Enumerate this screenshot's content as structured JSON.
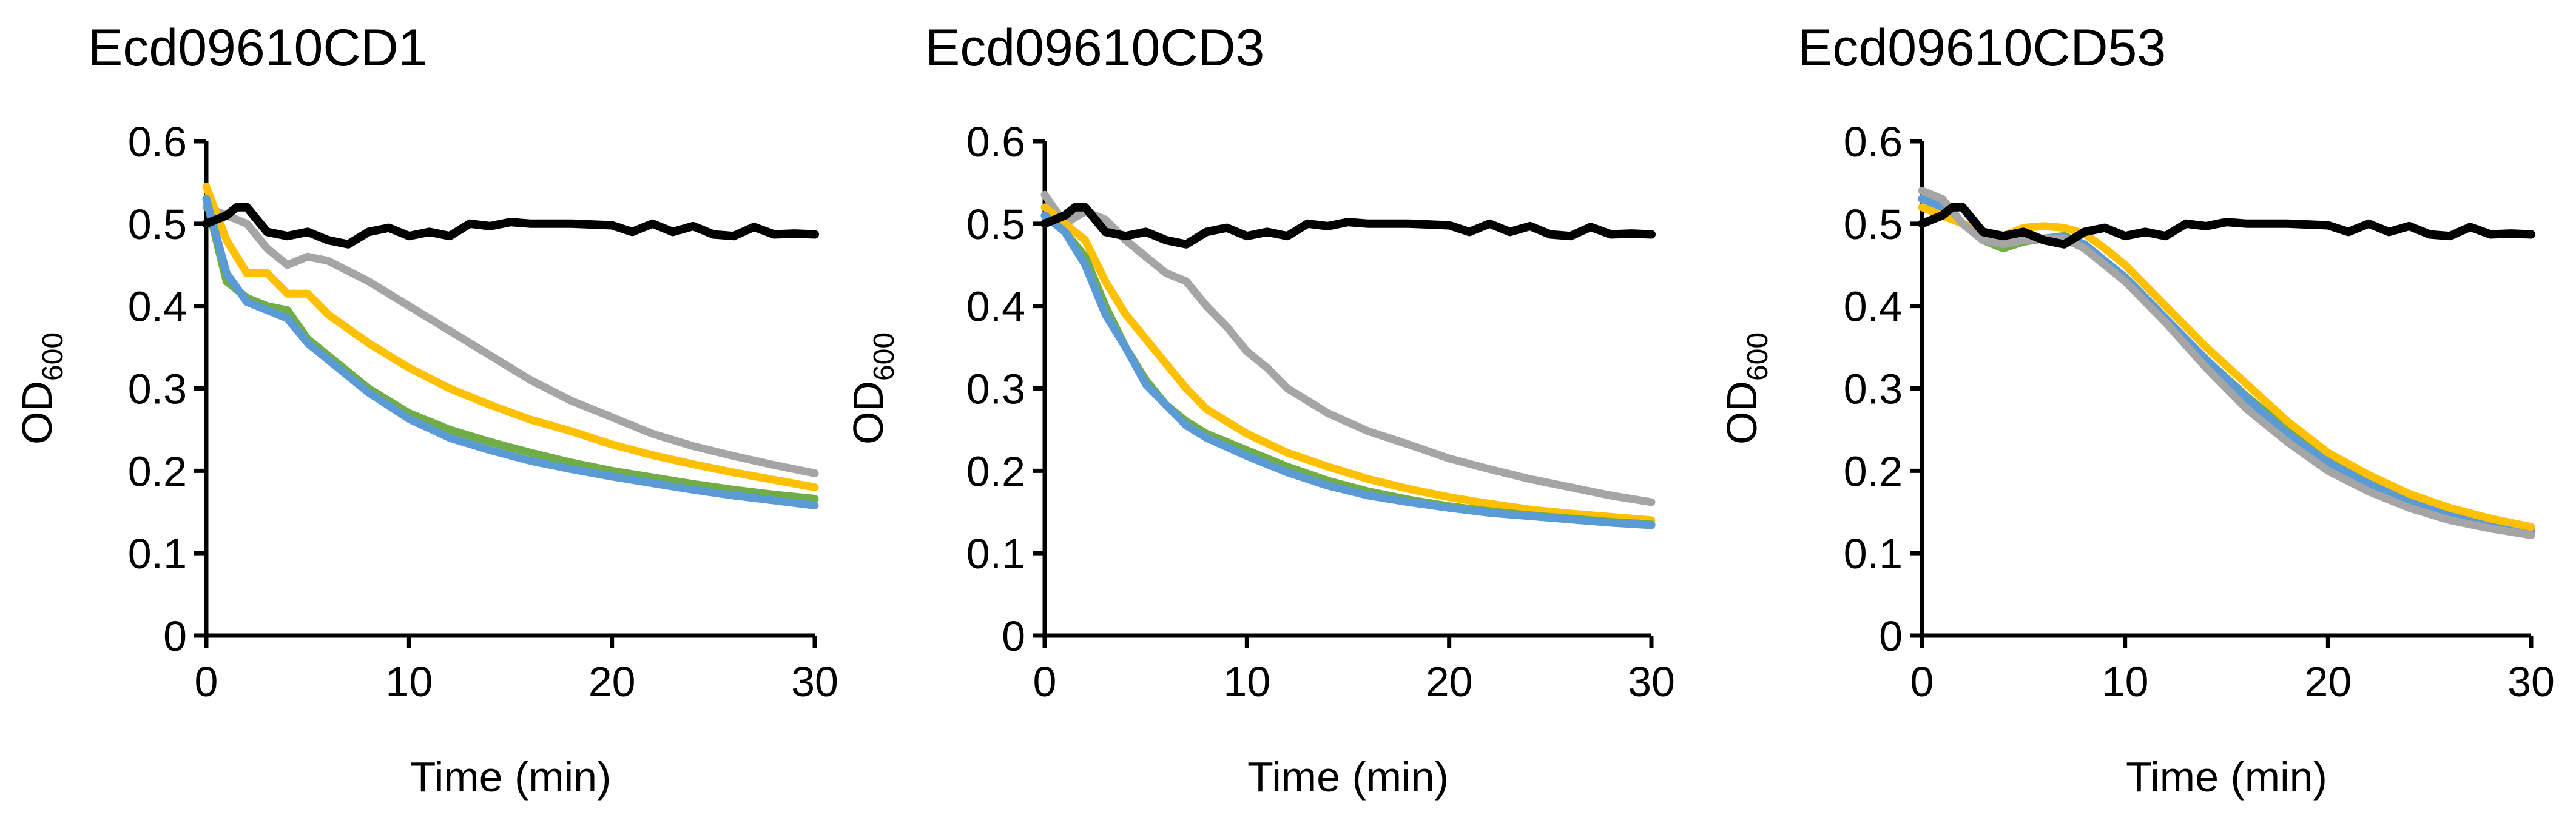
{
  "chart_data": [
    {
      "type": "line",
      "title": "Ecd09610CD1",
      "xlabel": "Time (min)",
      "ylabel": "OD",
      "ylabel_sub": "600",
      "xlim": [
        0,
        30
      ],
      "ylim": [
        0,
        0.6
      ],
      "xticks": [
        0,
        10,
        20,
        30
      ],
      "yticks": [
        0,
        0.1,
        0.2,
        0.3,
        0.4,
        0.5,
        0.6
      ],
      "series": [
        {
          "name": "gray",
          "color": "#a5a5a5",
          "x": [
            0,
            1,
            2,
            3,
            4,
            5,
            6,
            8,
            10,
            12,
            14,
            16,
            18,
            20,
            22,
            24,
            26,
            28,
            30
          ],
          "y": [
            0.52,
            0.51,
            0.5,
            0.47,
            0.45,
            0.46,
            0.455,
            0.43,
            0.4,
            0.37,
            0.34,
            0.31,
            0.285,
            0.265,
            0.245,
            0.23,
            0.218,
            0.207,
            0.197
          ]
        },
        {
          "name": "yellow",
          "color": "#ffc000",
          "x": [
            0,
            1,
            2,
            3,
            4,
            5,
            6,
            8,
            10,
            12,
            14,
            16,
            18,
            20,
            22,
            24,
            26,
            28,
            30
          ],
          "y": [
            0.545,
            0.48,
            0.44,
            0.44,
            0.415,
            0.415,
            0.39,
            0.355,
            0.325,
            0.3,
            0.28,
            0.262,
            0.248,
            0.232,
            0.219,
            0.208,
            0.198,
            0.189,
            0.18
          ]
        },
        {
          "name": "green",
          "color": "#70ad47",
          "x": [
            0,
            1,
            2,
            3,
            4,
            5,
            6,
            8,
            10,
            12,
            14,
            16,
            18,
            20,
            22,
            24,
            26,
            28,
            30
          ],
          "y": [
            0.53,
            0.43,
            0.41,
            0.4,
            0.395,
            0.36,
            0.34,
            0.3,
            0.27,
            0.25,
            0.235,
            0.222,
            0.21,
            0.2,
            0.192,
            0.184,
            0.177,
            0.171,
            0.166
          ]
        },
        {
          "name": "blue",
          "color": "#5b9bd5",
          "x": [
            0,
            1,
            2,
            3,
            4,
            5,
            6,
            8,
            10,
            12,
            14,
            16,
            18,
            20,
            22,
            24,
            26,
            28,
            30
          ],
          "y": [
            0.53,
            0.44,
            0.405,
            0.395,
            0.385,
            0.355,
            0.335,
            0.295,
            0.263,
            0.24,
            0.225,
            0.212,
            0.202,
            0.193,
            0.185,
            0.177,
            0.17,
            0.164,
            0.158
          ]
        },
        {
          "name": "black",
          "color": "#000000",
          "x": [
            0,
            1,
            1.5,
            2,
            3,
            4,
            5,
            6,
            7,
            8,
            9,
            10,
            11,
            12,
            13,
            14,
            15,
            16,
            18,
            20,
            21,
            22,
            23,
            24,
            25,
            26,
            27,
            28,
            29,
            30
          ],
          "y": [
            0.5,
            0.51,
            0.52,
            0.52,
            0.49,
            0.485,
            0.49,
            0.48,
            0.475,
            0.49,
            0.495,
            0.485,
            0.49,
            0.485,
            0.5,
            0.497,
            0.502,
            0.5,
            0.5,
            0.498,
            0.49,
            0.5,
            0.49,
            0.497,
            0.487,
            0.485,
            0.496,
            0.487,
            0.488,
            0.487
          ]
        }
      ]
    },
    {
      "type": "line",
      "title": "Ecd09610CD3",
      "xlabel": "Time (min)",
      "ylabel": "OD",
      "ylabel_sub": "600",
      "xlim": [
        0,
        30
      ],
      "ylim": [
        0,
        0.6
      ],
      "xticks": [
        0,
        10,
        20,
        30
      ],
      "yticks": [
        0,
        0.1,
        0.2,
        0.3,
        0.4,
        0.5,
        0.6
      ],
      "series": [
        {
          "name": "gray",
          "color": "#a5a5a5",
          "x": [
            0,
            1,
            2,
            3,
            4,
            5,
            6,
            7,
            8,
            9,
            10,
            11,
            12,
            14,
            16,
            18,
            20,
            22,
            24,
            26,
            28,
            30
          ],
          "y": [
            0.535,
            0.5,
            0.515,
            0.505,
            0.48,
            0.46,
            0.44,
            0.43,
            0.4,
            0.375,
            0.345,
            0.325,
            0.3,
            0.27,
            0.248,
            0.232,
            0.215,
            0.202,
            0.19,
            0.18,
            0.17,
            0.162
          ]
        },
        {
          "name": "yellow",
          "color": "#ffc000",
          "x": [
            0,
            1,
            2,
            3,
            4,
            5,
            6,
            7,
            8,
            10,
            12,
            14,
            16,
            18,
            20,
            22,
            24,
            26,
            28,
            30
          ],
          "y": [
            0.52,
            0.5,
            0.48,
            0.43,
            0.39,
            0.36,
            0.33,
            0.3,
            0.275,
            0.245,
            0.222,
            0.205,
            0.19,
            0.178,
            0.168,
            0.16,
            0.153,
            0.148,
            0.144,
            0.14
          ]
        },
        {
          "name": "green",
          "color": "#70ad47",
          "x": [
            0,
            1,
            2,
            3,
            4,
            5,
            6,
            7,
            8,
            10,
            12,
            14,
            16,
            18,
            20,
            22,
            24,
            26,
            28,
            30
          ],
          "y": [
            0.51,
            0.49,
            0.46,
            0.4,
            0.35,
            0.31,
            0.28,
            0.26,
            0.245,
            0.225,
            0.205,
            0.188,
            0.175,
            0.165,
            0.157,
            0.151,
            0.146,
            0.142,
            0.138,
            0.135
          ]
        },
        {
          "name": "blue",
          "color": "#5b9bd5",
          "x": [
            0,
            1,
            2,
            3,
            4,
            5,
            6,
            7,
            8,
            10,
            12,
            14,
            16,
            18,
            20,
            22,
            24,
            26,
            28,
            30
          ],
          "y": [
            0.51,
            0.49,
            0.45,
            0.39,
            0.35,
            0.305,
            0.28,
            0.255,
            0.24,
            0.218,
            0.198,
            0.182,
            0.17,
            0.162,
            0.155,
            0.149,
            0.145,
            0.141,
            0.137,
            0.134
          ]
        },
        {
          "name": "black",
          "color": "#000000",
          "x": [
            0,
            1,
            1.5,
            2,
            3,
            4,
            5,
            6,
            7,
            8,
            9,
            10,
            11,
            12,
            13,
            14,
            15,
            16,
            18,
            20,
            21,
            22,
            23,
            24,
            25,
            26,
            27,
            28,
            29,
            30
          ],
          "y": [
            0.5,
            0.51,
            0.52,
            0.52,
            0.49,
            0.485,
            0.49,
            0.48,
            0.475,
            0.49,
            0.495,
            0.485,
            0.49,
            0.485,
            0.5,
            0.497,
            0.502,
            0.5,
            0.5,
            0.498,
            0.49,
            0.5,
            0.49,
            0.497,
            0.487,
            0.485,
            0.496,
            0.487,
            0.488,
            0.487
          ]
        }
      ]
    },
    {
      "type": "line",
      "title": "Ecd09610CD53",
      "xlabel": "Time (min)",
      "ylabel": "OD",
      "ylabel_sub": "600",
      "xlim": [
        0,
        30
      ],
      "ylim": [
        0,
        0.6
      ],
      "xticks": [
        0,
        10,
        20,
        30
      ],
      "yticks": [
        0,
        0.1,
        0.2,
        0.3,
        0.4,
        0.5,
        0.6
      ],
      "series": [
        {
          "name": "green",
          "color": "#70ad47",
          "x": [
            0,
            1,
            2,
            3,
            4,
            5,
            6,
            7,
            8,
            9,
            10,
            12,
            14,
            16,
            18,
            20,
            22,
            24,
            26,
            28,
            30
          ],
          "y": [
            0.53,
            0.52,
            0.5,
            0.48,
            0.47,
            0.478,
            0.482,
            0.485,
            0.475,
            0.455,
            0.435,
            0.385,
            0.335,
            0.29,
            0.25,
            0.215,
            0.19,
            0.168,
            0.15,
            0.138,
            0.13
          ]
        },
        {
          "name": "blue",
          "color": "#5b9bd5",
          "x": [
            0,
            1,
            2,
            3,
            4,
            5,
            6,
            7,
            8,
            9,
            10,
            12,
            14,
            16,
            18,
            20,
            22,
            24,
            26,
            28,
            30
          ],
          "y": [
            0.53,
            0.52,
            0.5,
            0.485,
            0.478,
            0.48,
            0.482,
            0.483,
            0.475,
            0.455,
            0.435,
            0.385,
            0.335,
            0.288,
            0.245,
            0.21,
            0.185,
            0.163,
            0.147,
            0.135,
            0.127
          ]
        },
        {
          "name": "yellow",
          "color": "#ffc000",
          "x": [
            0,
            1,
            2,
            3,
            4,
            5,
            6,
            7,
            8,
            9,
            10,
            12,
            14,
            16,
            18,
            20,
            22,
            24,
            26,
            28,
            30
          ],
          "y": [
            0.52,
            0.51,
            0.5,
            0.49,
            0.485,
            0.495,
            0.497,
            0.495,
            0.488,
            0.47,
            0.45,
            0.4,
            0.35,
            0.305,
            0.26,
            0.222,
            0.195,
            0.172,
            0.155,
            0.142,
            0.132
          ]
        },
        {
          "name": "gray",
          "color": "#a5a5a5",
          "x": [
            0,
            1,
            2,
            3,
            4,
            5,
            6,
            7,
            8,
            9,
            10,
            12,
            14,
            16,
            18,
            20,
            22,
            24,
            26,
            28,
            30
          ],
          "y": [
            0.54,
            0.53,
            0.5,
            0.48,
            0.475,
            0.48,
            0.482,
            0.482,
            0.47,
            0.45,
            0.43,
            0.38,
            0.325,
            0.275,
            0.235,
            0.2,
            0.175,
            0.155,
            0.14,
            0.13,
            0.122
          ]
        },
        {
          "name": "black",
          "color": "#000000",
          "x": [
            0,
            1,
            1.5,
            2,
            3,
            4,
            5,
            6,
            7,
            8,
            9,
            10,
            11,
            12,
            13,
            14,
            15,
            16,
            18,
            20,
            21,
            22,
            23,
            24,
            25,
            26,
            27,
            28,
            29,
            30
          ],
          "y": [
            0.5,
            0.51,
            0.52,
            0.52,
            0.49,
            0.485,
            0.49,
            0.48,
            0.475,
            0.49,
            0.495,
            0.485,
            0.49,
            0.485,
            0.5,
            0.497,
            0.502,
            0.5,
            0.5,
            0.498,
            0.49,
            0.5,
            0.49,
            0.497,
            0.487,
            0.485,
            0.496,
            0.487,
            0.488,
            0.487
          ]
        }
      ]
    }
  ]
}
